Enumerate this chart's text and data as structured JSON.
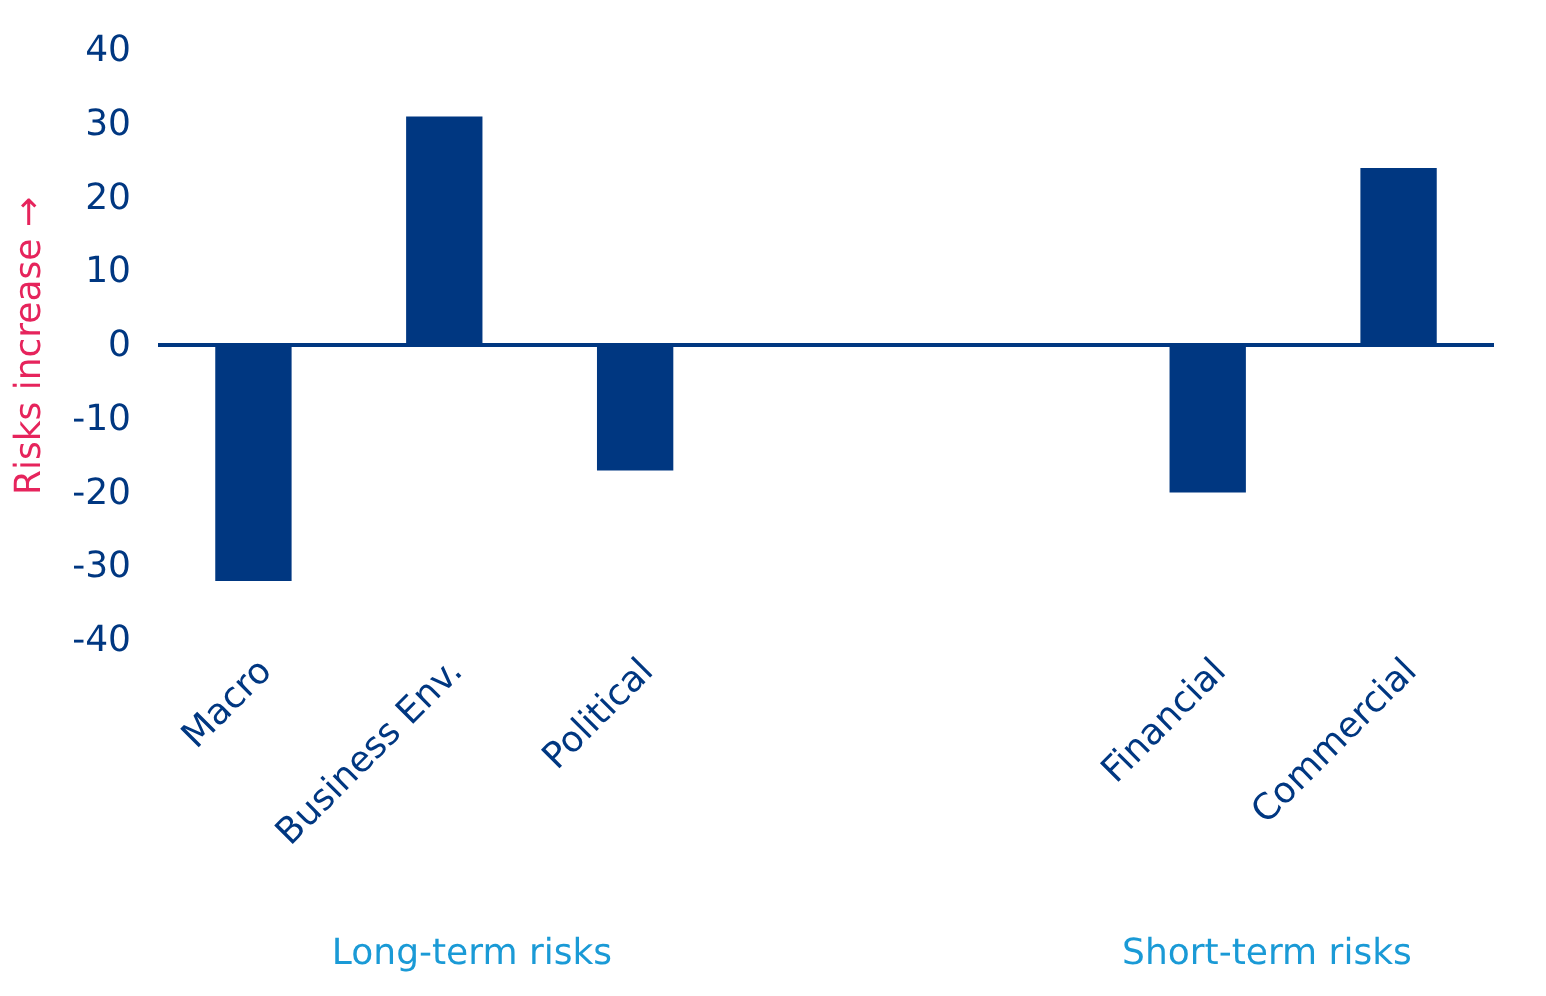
{
  "chart_data": {
    "type": "bar",
    "ylabel": "Risks increase →",
    "categories": [
      "Macro",
      "Business Env.",
      "Political",
      null,
      null,
      "Financial",
      "Commercial"
    ],
    "values": [
      -32,
      31,
      -17,
      null,
      null,
      -20,
      24
    ],
    "color": "#003781",
    "ylim": [
      -40,
      40
    ],
    "yticks": [
      -40,
      -30,
      -20,
      -10,
      0,
      10,
      20,
      30,
      40
    ],
    "grid": false,
    "ref_lines": [
      {
        "axis": "y",
        "value": 0,
        "color": "#003781"
      }
    ],
    "annotations": [
      "Long-term risks",
      "Short-term risks"
    ]
  }
}
